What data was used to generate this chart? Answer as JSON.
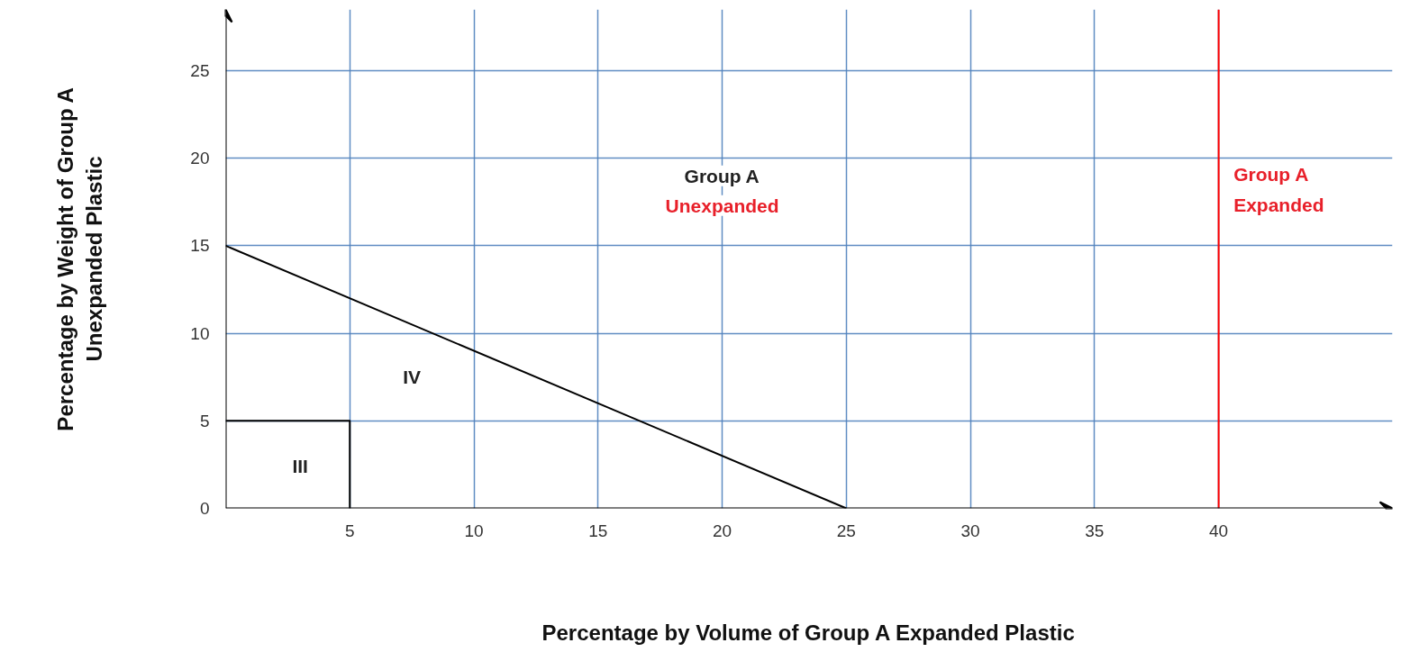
{
  "chart_data": {
    "type": "line",
    "xlabel": "Percentage by Volume of Group A Expanded Plastic",
    "ylabel": "Percentage by Weight of Group A\nUnexpanded Plastic",
    "series": [
      {
        "color": "#000000",
        "x": [
          0,
          25
        ],
        "values": [
          15,
          0
        ]
      },
      {
        "color": "#000000",
        "x": [
          0,
          5,
          5
        ],
        "values": [
          5,
          5,
          0
        ]
      }
    ],
    "xlim": [
      0,
      47
    ],
    "ylim": [
      0,
      28.5
    ],
    "xticks": [
      5,
      10,
      15,
      20,
      25,
      30,
      35,
      40
    ],
    "yticks": [
      0,
      5,
      10,
      15,
      20,
      25
    ],
    "grid": true,
    "marker": "none",
    "line_style": "solid",
    "ref_lines": [
      {
        "axis": "x",
        "value": 40,
        "label": "Group A\nExpanded",
        "color": "#ff0000"
      }
    ],
    "annotations": [
      "Group A",
      "Unexpanded",
      "IV",
      "III"
    ]
  }
}
